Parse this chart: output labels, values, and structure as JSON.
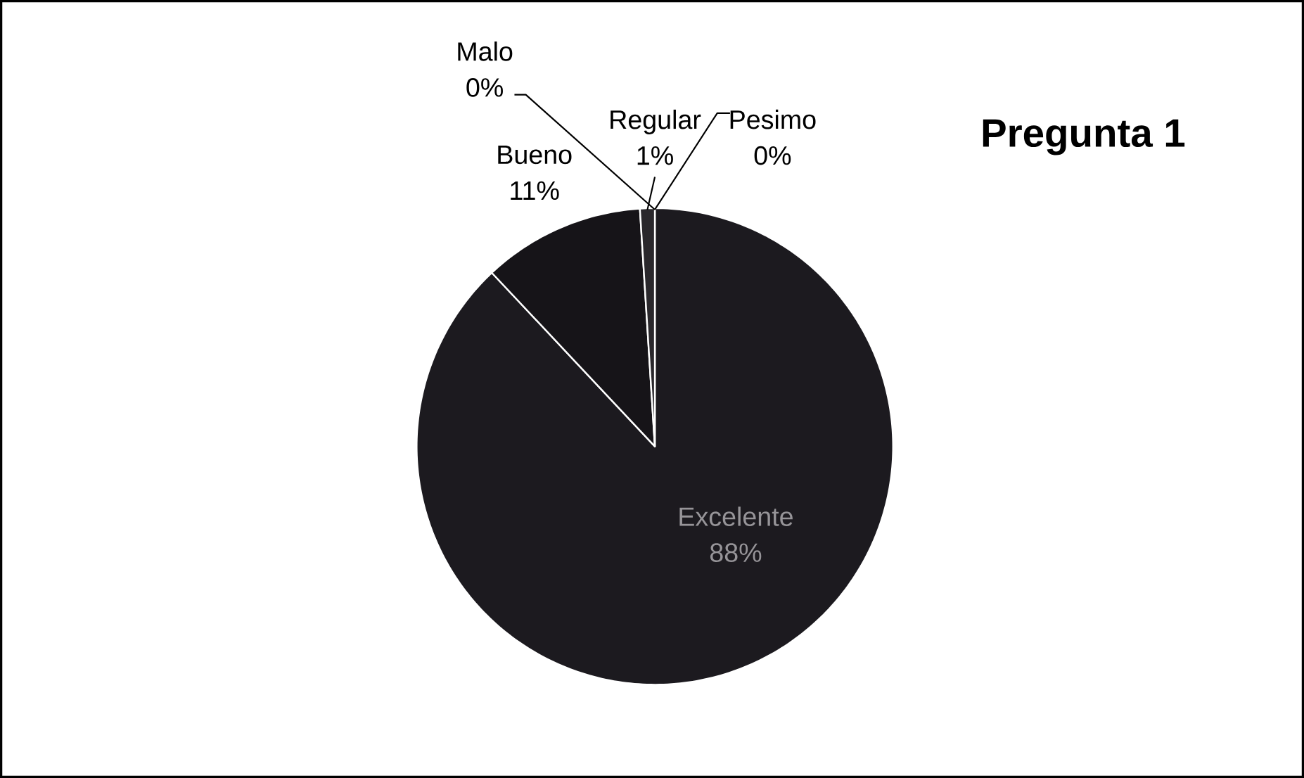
{
  "chart_data": {
    "type": "pie",
    "title": "Pregunta 1",
    "categories": [
      "Excelente",
      "Bueno",
      "Regular",
      "Malo",
      "Pesimo"
    ],
    "values": [
      88,
      11,
      1,
      0,
      0
    ],
    "value_labels": [
      "88%",
      "11%",
      "1%",
      "0%",
      "0%"
    ],
    "colors": [
      "#1c1a1f",
      "#161418",
      "#2a282c",
      "#222024",
      "#262428"
    ],
    "legend": false
  }
}
